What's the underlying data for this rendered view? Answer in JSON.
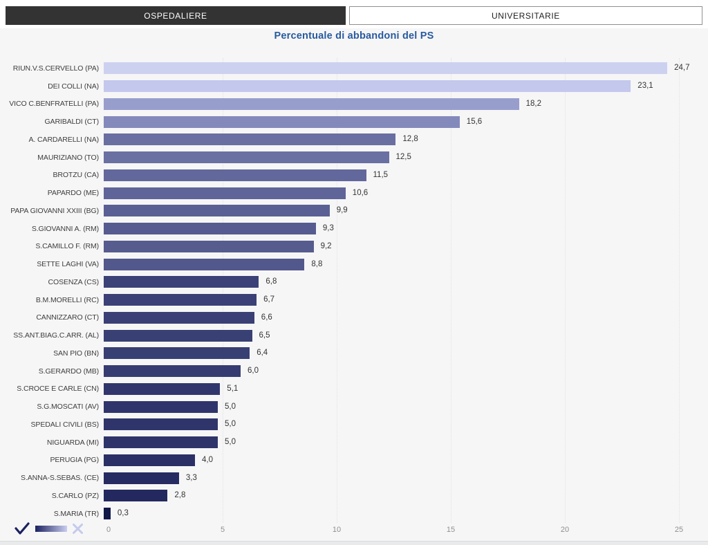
{
  "tabs": [
    {
      "label": "OSPEDALIERE",
      "active": true
    },
    {
      "label": "UNIVERSITARIE",
      "active": false
    }
  ],
  "title": "Percentuale di abbandoni del PS",
  "chart_data": {
    "type": "bar",
    "orientation": "horizontal",
    "title": "Percentuale di abbandoni del PS",
    "xlabel": "",
    "ylabel": "",
    "xlim": [
      0,
      25
    ],
    "x_ticks": [
      "0",
      "5",
      "10",
      "15",
      "20",
      "25"
    ],
    "x_tick_values": [
      0,
      5,
      10,
      15,
      20,
      25
    ],
    "grid": "dotted-vertical",
    "legend_position": "bottom-left",
    "categories": [
      "RIUN.V.S.CERVELLO (PA)",
      "DEI COLLI (NA)",
      "VICO C.BENFRATELLI (PA)",
      "GARIBALDI (CT)",
      "A. CARDARELLI (NA)",
      "MAURIZIANO (TO)",
      "BROTZU (CA)",
      "PAPARDO (ME)",
      "PAPA GIOVANNI XXIII (BG)",
      "S.GIOVANNI A. (RM)",
      "S.CAMILLO F. (RM)",
      "SETTE LAGHI (VA)",
      "COSENZA (CS)",
      "B.M.MORELLI (RC)",
      "CANNIZZARO (CT)",
      "SS.ANT.BIAG.C.ARR. (AL)",
      "SAN PIO (BN)",
      "S.GERARDO (MB)",
      "S.CROCE E CARLE (CN)",
      "S.G.MOSCATI (AV)",
      "SPEDALI CIVILI (BS)",
      "NIGUARDA (MI)",
      "PERUGIA (PG)",
      "S.ANNA-S.SEBAS. (CE)",
      "S.CARLO (PZ)",
      "S.MARIA (TR)"
    ],
    "values": [
      24.7,
      23.1,
      18.2,
      15.6,
      12.8,
      12.5,
      11.5,
      10.6,
      9.9,
      9.3,
      9.2,
      8.8,
      6.8,
      6.7,
      6.6,
      6.5,
      6.4,
      6.0,
      5.1,
      5.0,
      5.0,
      5.0,
      4.0,
      3.3,
      2.8,
      0.3
    ],
    "display_values": [
      "24,7",
      "23,1",
      "18,2",
      "15,6",
      "12,8",
      "12,5",
      "11,5",
      "10,6",
      "9,9",
      "9,3",
      "9,2",
      "8,8",
      "6,8",
      "6,7",
      "6,6",
      "6,5",
      "6,4",
      "6,0",
      "5,1",
      "5,0",
      "5,0",
      "5,0",
      "4,0",
      "3,3",
      "2,8",
      "0,3"
    ],
    "bar_colors": [
      "#cdd1f0",
      "#c3c8ec",
      "#989ecc",
      "#8489bb",
      "#696fa1",
      "#6a70a2",
      "#62689c",
      "#5f6599",
      "#5a6094",
      "#565c8f",
      "#565c8e",
      "#52588b",
      "#3c4277",
      "#3b4176",
      "#3a4075",
      "#394074",
      "#383f73",
      "#363c71",
      "#30366c",
      "#2f356b",
      "#2f356b",
      "#2e346a",
      "#2a3065",
      "#262c61",
      "#23295e",
      "#101848"
    ]
  },
  "legend_control": {
    "check_color": "#1b2260",
    "gradient_from": "#1b2260",
    "gradient_to": "#c9cdef",
    "close_color": "#c5caec"
  },
  "colors": {
    "tab_active_bg": "#333333",
    "tab_inactive_border": "#8f8f8f",
    "title": "#275a9e",
    "chart_bg": "#f6f6f7",
    "axis_label": "#8f8f8f",
    "category_label": "#3d3d3d",
    "value_label": "#333333"
  }
}
